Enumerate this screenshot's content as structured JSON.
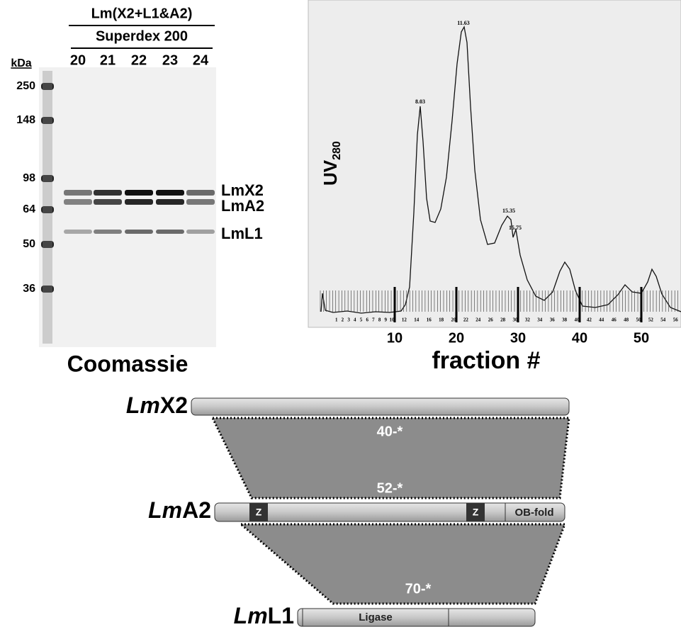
{
  "gel": {
    "title_line1": "Lm(X2+L1&A2)",
    "title_line2": "Superdex 200",
    "lanes": [
      "20",
      "21",
      "22",
      "23",
      "24"
    ],
    "marker_unit": "kDa",
    "markers": [
      "250",
      "148",
      "98",
      "64",
      "50",
      "36"
    ],
    "bands": [
      "LmX2",
      "LmA2",
      "LmL1"
    ],
    "caption": "Coomassie"
  },
  "chromatogram": {
    "y_label": "UV",
    "y_label_sub": "280",
    "x_label": "fraction #",
    "x_ticks": [
      "10",
      "20",
      "30",
      "40",
      "50"
    ],
    "peaks": [
      "8.03",
      "11.63",
      "15.35",
      "15.75"
    ],
    "fraction_numbers": [
      "1",
      "2",
      "3",
      "4",
      "5",
      "6",
      "7",
      "8",
      "9",
      "10",
      "12",
      "14",
      "16",
      "18",
      "20",
      "22",
      "24",
      "26",
      "28",
      "30",
      "32",
      "34",
      "36",
      "38",
      "40",
      "42",
      "44",
      "46",
      "48",
      "50",
      "52",
      "54",
      "56"
    ]
  },
  "diagram": {
    "proteins": [
      {
        "italic": "Lm",
        "plain": "X2"
      },
      {
        "italic": "Lm",
        "plain": "A2"
      },
      {
        "italic": "Lm",
        "plain": "L1"
      }
    ],
    "domains": [
      "Z",
      "Z",
      "OB-fold",
      "Ligase"
    ],
    "interactions": [
      "40-*",
      "52-*",
      "70-*"
    ]
  }
}
